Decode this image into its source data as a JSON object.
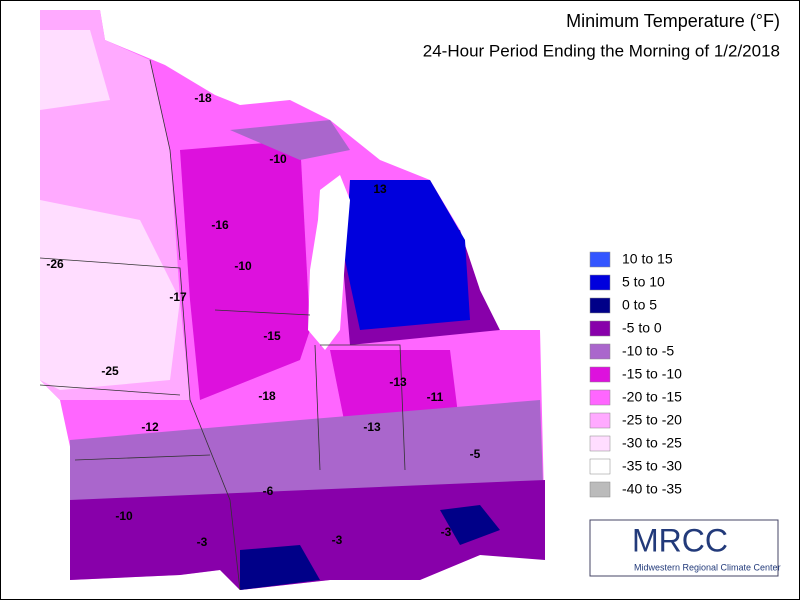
{
  "title": "Minimum Temperature (°F)",
  "subtitle": "24-Hour Period Ending the Morning of 1/2/2018",
  "legend": [
    {
      "label": "10 to 15",
      "color": "#3355ff"
    },
    {
      "label": "5 to 10",
      "color": "#0000dd"
    },
    {
      "label": "0 to 5",
      "color": "#000088"
    },
    {
      "label": "-5 to 0",
      "color": "#8800aa"
    },
    {
      "label": "-10 to -5",
      "color": "#aa66cc"
    },
    {
      "label": "-15 to -10",
      "color": "#dd11dd"
    },
    {
      "label": "-20 to -15",
      "color": "#ff66ff"
    },
    {
      "label": "-25 to -20",
      "color": "#ffaaff"
    },
    {
      "label": "-30 to -25",
      "color": "#ffddff"
    },
    {
      "label": "-35 to -30",
      "color": "#ffffff"
    },
    {
      "label": "-40 to -35",
      "color": "#bbbbbb"
    }
  ],
  "station_labels": [
    -18,
    -10,
    13,
    -16,
    -26,
    -10,
    -17,
    -15,
    -13,
    -25,
    -18,
    -11,
    -12,
    -13,
    -5,
    -6,
    -10,
    -3,
    -3,
    -3
  ],
  "logo": {
    "name": "MRCC",
    "caption": "Midwestern Regional Climate Center"
  }
}
